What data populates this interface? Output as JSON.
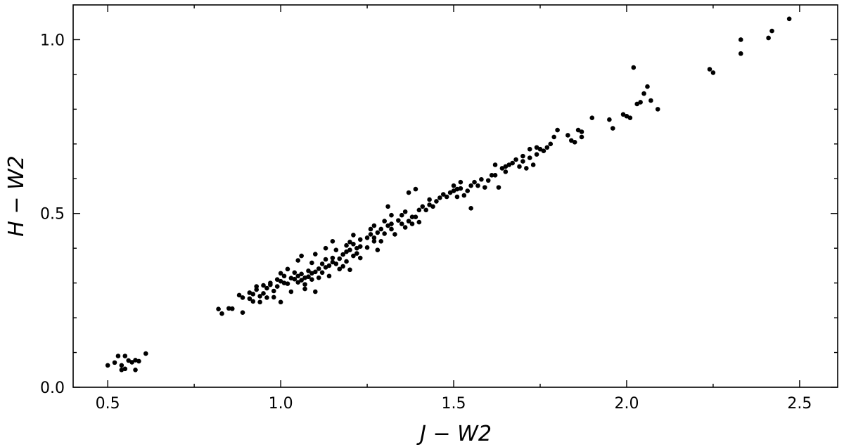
{
  "chart_data": {
    "type": "scatter",
    "title": "",
    "xlabel": "J − W2",
    "ylabel": "H − W2",
    "xlim": [
      0.4,
      2.61
    ],
    "ylim": [
      0.0,
      1.1
    ],
    "x_major_ticks": [
      0.5,
      1.0,
      1.5,
      2.0,
      2.5
    ],
    "x_minor_ticks": [
      0.75,
      1.25,
      1.75,
      2.25
    ],
    "y_major_ticks": [
      0.0,
      0.5,
      1.0
    ],
    "y_minor_ticks": [
      0.1,
      0.2,
      0.3,
      0.4,
      0.6,
      0.7,
      0.8,
      0.9
    ],
    "x_tick_labels": [
      "0.5",
      "1.0",
      "1.5",
      "2.0",
      "2.5"
    ],
    "y_tick_labels": [
      "0.0",
      "0.5",
      "1.0"
    ],
    "grid": false,
    "legend": "none",
    "marker_color": "#000000",
    "series": [
      {
        "points": [
          [
            0.5,
            0.063
          ],
          [
            0.52,
            0.071
          ],
          [
            0.53,
            0.09
          ],
          [
            0.54,
            0.063
          ],
          [
            0.54,
            0.05
          ],
          [
            0.55,
            0.053
          ],
          [
            0.55,
            0.09
          ],
          [
            0.56,
            0.077
          ],
          [
            0.57,
            0.072
          ],
          [
            0.58,
            0.078
          ],
          [
            0.58,
            0.05
          ],
          [
            0.59,
            0.075
          ],
          [
            0.61,
            0.097
          ],
          [
            0.82,
            0.225
          ],
          [
            0.83,
            0.212
          ],
          [
            0.85,
            0.227
          ],
          [
            0.86,
            0.226
          ],
          [
            0.88,
            0.265
          ],
          [
            0.89,
            0.215
          ],
          [
            0.89,
            0.258
          ],
          [
            0.91,
            0.272
          ],
          [
            0.91,
            0.255
          ],
          [
            0.92,
            0.247
          ],
          [
            0.92,
            0.268
          ],
          [
            0.93,
            0.281
          ],
          [
            0.93,
            0.29
          ],
          [
            0.94,
            0.262
          ],
          [
            0.94,
            0.245
          ],
          [
            0.95,
            0.27
          ],
          [
            0.95,
            0.293
          ],
          [
            0.96,
            0.285
          ],
          [
            0.96,
            0.258
          ],
          [
            0.97,
            0.3
          ],
          [
            0.97,
            0.295
          ],
          [
            0.98,
            0.277
          ],
          [
            0.98,
            0.259
          ],
          [
            0.99,
            0.31
          ],
          [
            0.99,
            0.29
          ],
          [
            1.0,
            0.328
          ],
          [
            1.0,
            0.305
          ],
          [
            1.0,
            0.245
          ],
          [
            1.01,
            0.32
          ],
          [
            1.01,
            0.3
          ],
          [
            1.02,
            0.34
          ],
          [
            1.02,
            0.298
          ],
          [
            1.03,
            0.314
          ],
          [
            1.03,
            0.275
          ],
          [
            1.04,
            0.311
          ],
          [
            1.04,
            0.33
          ],
          [
            1.05,
            0.302
          ],
          [
            1.05,
            0.365
          ],
          [
            1.05,
            0.32
          ],
          [
            1.06,
            0.308
          ],
          [
            1.06,
            0.326
          ],
          [
            1.06,
            0.378
          ],
          [
            1.07,
            0.315
          ],
          [
            1.07,
            0.296
          ],
          [
            1.07,
            0.283
          ],
          [
            1.08,
            0.335
          ],
          [
            1.08,
            0.318
          ],
          [
            1.09,
            0.328
          ],
          [
            1.09,
            0.358
          ],
          [
            1.09,
            0.31
          ],
          [
            1.1,
            0.332
          ],
          [
            1.1,
            0.383
          ],
          [
            1.1,
            0.275
          ],
          [
            1.11,
            0.341
          ],
          [
            1.11,
            0.315
          ],
          [
            1.12,
            0.355
          ],
          [
            1.12,
            0.33
          ],
          [
            1.13,
            0.368
          ],
          [
            1.13,
            0.345
          ],
          [
            1.13,
            0.4
          ],
          [
            1.14,
            0.35
          ],
          [
            1.14,
            0.32
          ],
          [
            1.15,
            0.372
          ],
          [
            1.15,
            0.42
          ],
          [
            1.15,
            0.36
          ],
          [
            1.16,
            0.355
          ],
          [
            1.16,
            0.395
          ],
          [
            1.17,
            0.37
          ],
          [
            1.17,
            0.34
          ],
          [
            1.18,
            0.382
          ],
          [
            1.18,
            0.348
          ],
          [
            1.19,
            0.39
          ],
          [
            1.19,
            0.408
          ],
          [
            1.19,
            0.362
          ],
          [
            1.2,
            0.395
          ],
          [
            1.2,
            0.418
          ],
          [
            1.2,
            0.338
          ],
          [
            1.21,
            0.412
          ],
          [
            1.21,
            0.378
          ],
          [
            1.21,
            0.438
          ],
          [
            1.22,
            0.4
          ],
          [
            1.22,
            0.385
          ],
          [
            1.23,
            0.405
          ],
          [
            1.23,
            0.425
          ],
          [
            1.23,
            0.372
          ],
          [
            1.25,
            0.43
          ],
          [
            1.25,
            0.402
          ],
          [
            1.26,
            0.44
          ],
          [
            1.26,
            0.455
          ],
          [
            1.27,
            0.43
          ],
          [
            1.27,
            0.465
          ],
          [
            1.27,
            0.42
          ],
          [
            1.28,
            0.445
          ],
          [
            1.28,
            0.395
          ],
          [
            1.29,
            0.455
          ],
          [
            1.29,
            0.42
          ],
          [
            1.3,
            0.442
          ],
          [
            1.3,
            0.478
          ],
          [
            1.31,
            0.465
          ],
          [
            1.31,
            0.52
          ],
          [
            1.32,
            0.47
          ],
          [
            1.32,
            0.455
          ],
          [
            1.32,
            0.495
          ],
          [
            1.33,
            0.44
          ],
          [
            1.34,
            0.48
          ],
          [
            1.35,
            0.47
          ],
          [
            1.35,
            0.495
          ],
          [
            1.36,
            0.46
          ],
          [
            1.36,
            0.505
          ],
          [
            1.37,
            0.478
          ],
          [
            1.37,
            0.56
          ],
          [
            1.38,
            0.49
          ],
          [
            1.38,
            0.47
          ],
          [
            1.39,
            0.49
          ],
          [
            1.39,
            0.57
          ],
          [
            1.4,
            0.51
          ],
          [
            1.4,
            0.475
          ],
          [
            1.41,
            0.52
          ],
          [
            1.42,
            0.51
          ],
          [
            1.43,
            0.525
          ],
          [
            1.43,
            0.54
          ],
          [
            1.44,
            0.52
          ],
          [
            1.45,
            0.535
          ],
          [
            1.46,
            0.545
          ],
          [
            1.47,
            0.555
          ],
          [
            1.48,
            0.548
          ],
          [
            1.49,
            0.56
          ],
          [
            1.5,
            0.565
          ],
          [
            1.5,
            0.58
          ],
          [
            1.51,
            0.548
          ],
          [
            1.51,
            0.57
          ],
          [
            1.52,
            0.572
          ],
          [
            1.52,
            0.59
          ],
          [
            1.53,
            0.552
          ],
          [
            1.54,
            0.565
          ],
          [
            1.55,
            0.58
          ],
          [
            1.55,
            0.515
          ],
          [
            1.56,
            0.59
          ],
          [
            1.57,
            0.58
          ],
          [
            1.58,
            0.598
          ],
          [
            1.59,
            0.575
          ],
          [
            1.6,
            0.595
          ],
          [
            1.61,
            0.61
          ],
          [
            1.62,
            0.61
          ],
          [
            1.62,
            0.64
          ],
          [
            1.63,
            0.575
          ],
          [
            1.64,
            0.63
          ],
          [
            1.65,
            0.635
          ],
          [
            1.65,
            0.62
          ],
          [
            1.66,
            0.64
          ],
          [
            1.67,
            0.645
          ],
          [
            1.68,
            0.655
          ],
          [
            1.69,
            0.635
          ],
          [
            1.7,
            0.65
          ],
          [
            1.7,
            0.665
          ],
          [
            1.71,
            0.63
          ],
          [
            1.72,
            0.66
          ],
          [
            1.72,
            0.685
          ],
          [
            1.73,
            0.64
          ],
          [
            1.74,
            0.67
          ],
          [
            1.74,
            0.69
          ],
          [
            1.75,
            0.685
          ],
          [
            1.76,
            0.68
          ],
          [
            1.77,
            0.69
          ],
          [
            1.78,
            0.7
          ],
          [
            1.79,
            0.72
          ],
          [
            1.8,
            0.74
          ],
          [
            1.83,
            0.725
          ],
          [
            1.84,
            0.71
          ],
          [
            1.85,
            0.705
          ],
          [
            1.86,
            0.74
          ],
          [
            1.87,
            0.72
          ],
          [
            1.87,
            0.735
          ],
          [
            1.9,
            0.775
          ],
          [
            1.95,
            0.77
          ],
          [
            1.96,
            0.745
          ],
          [
            1.99,
            0.785
          ],
          [
            2.0,
            0.78
          ],
          [
            2.01,
            0.775
          ],
          [
            2.02,
            0.92
          ],
          [
            2.03,
            0.815
          ],
          [
            2.04,
            0.82
          ],
          [
            2.05,
            0.845
          ],
          [
            2.06,
            0.865
          ],
          [
            2.07,
            0.825
          ],
          [
            2.09,
            0.8
          ],
          [
            2.24,
            0.915
          ],
          [
            2.25,
            0.905
          ],
          [
            2.33,
            1.0
          ],
          [
            2.33,
            0.96
          ],
          [
            2.41,
            1.005
          ],
          [
            2.42,
            1.025
          ],
          [
            2.47,
            1.06
          ]
        ]
      }
    ]
  }
}
